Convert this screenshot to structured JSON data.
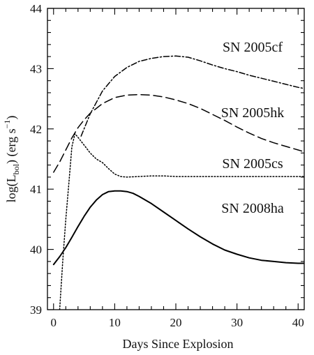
{
  "chart_data": {
    "type": "line",
    "xlabel": "Days Since Explosion",
    "ylabel_parts": {
      "prefix": "log(L",
      "subscript": "bol",
      "middle": ") (erg s",
      "superscript": "−1",
      "suffix": ")"
    },
    "xlim": [
      -1,
      41
    ],
    "ylim": [
      39,
      44
    ],
    "x_ticks": [
      0,
      10,
      20,
      30,
      40
    ],
    "y_ticks": [
      39,
      40,
      41,
      42,
      43,
      44
    ],
    "x_tick_labels": [
      "0",
      "10",
      "20",
      "30",
      "40"
    ],
    "y_tick_labels": [
      "39",
      "40",
      "41",
      "42",
      "43",
      "44"
    ],
    "grid": false,
    "legend": "none",
    "series": [
      {
        "name": "SN 2005cf",
        "style": "dash-dot",
        "color": "#000000",
        "x": [
          4.5,
          6,
          8,
          10,
          12,
          14,
          16,
          18,
          20,
          22,
          24,
          26,
          28,
          30,
          32,
          34,
          36,
          38,
          40,
          41
        ],
        "y": [
          41.88,
          42.25,
          42.63,
          42.87,
          43.02,
          43.12,
          43.17,
          43.2,
          43.21,
          43.19,
          43.13,
          43.06,
          43.0,
          42.95,
          42.89,
          42.84,
          42.79,
          42.74,
          42.69,
          42.67
        ]
      },
      {
        "name": "SN 2005hk",
        "style": "dashed",
        "color": "#000000",
        "x": [
          0,
          1,
          2,
          3,
          4,
          5,
          6,
          8,
          10,
          12,
          14,
          16,
          18,
          20,
          22,
          24,
          26,
          28,
          30,
          32,
          34,
          36,
          38,
          40,
          41
        ],
        "y": [
          41.28,
          41.45,
          41.65,
          41.85,
          42.02,
          42.15,
          42.26,
          42.42,
          42.52,
          42.56,
          42.57,
          42.56,
          42.53,
          42.48,
          42.42,
          42.34,
          42.24,
          42.14,
          42.03,
          41.93,
          41.84,
          41.77,
          41.71,
          41.65,
          41.62
        ]
      },
      {
        "name": "SN 2005cs",
        "style": "dotted",
        "color": "#000000",
        "x": [
          1,
          1.5,
          2,
          2.5,
          3,
          3.5,
          4,
          5,
          6,
          7,
          8,
          9,
          10,
          11,
          12,
          14,
          16,
          18,
          20,
          25,
          30,
          35,
          40,
          41
        ],
        "y": [
          39.0,
          39.8,
          40.5,
          41.1,
          41.7,
          41.92,
          41.86,
          41.73,
          41.6,
          41.5,
          41.44,
          41.34,
          41.25,
          41.21,
          41.2,
          41.21,
          41.22,
          41.22,
          41.21,
          41.21,
          41.21,
          41.21,
          41.21,
          41.21
        ]
      },
      {
        "name": "SN 2008ha",
        "style": "solid",
        "color": "#000000",
        "x": [
          0,
          1,
          2,
          3,
          4,
          5,
          6,
          7,
          8,
          9,
          10,
          11,
          12,
          13,
          14,
          16,
          18,
          20,
          22,
          24,
          26,
          28,
          30,
          32,
          34,
          36,
          38,
          40,
          41
        ],
        "y": [
          39.75,
          39.88,
          40.03,
          40.2,
          40.38,
          40.55,
          40.7,
          40.82,
          40.91,
          40.96,
          40.97,
          40.97,
          40.96,
          40.93,
          40.88,
          40.76,
          40.62,
          40.48,
          40.34,
          40.21,
          40.09,
          39.99,
          39.92,
          39.86,
          39.82,
          39.8,
          39.78,
          39.77,
          39.77
        ]
      }
    ]
  }
}
